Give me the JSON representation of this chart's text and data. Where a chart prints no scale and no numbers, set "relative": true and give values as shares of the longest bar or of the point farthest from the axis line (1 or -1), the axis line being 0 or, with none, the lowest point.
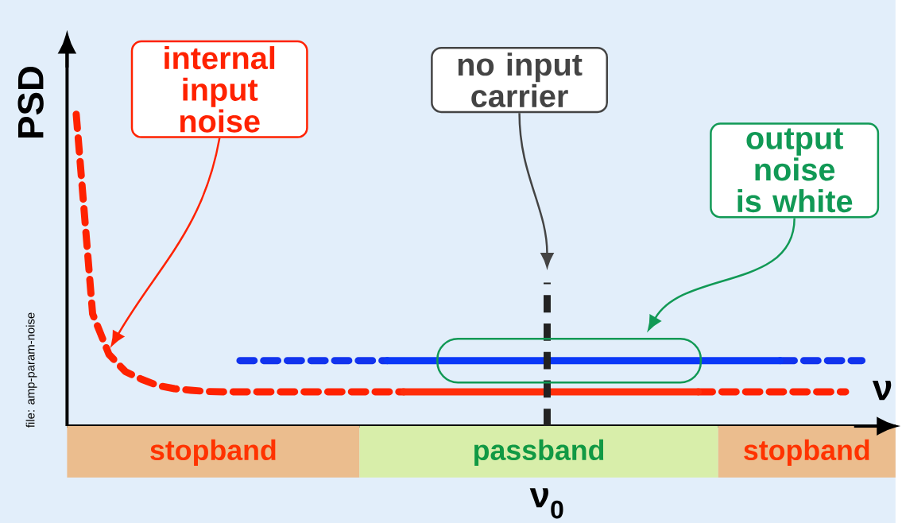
{
  "chart_data": {
    "type": "line",
    "relative": true,
    "xlabel": "ν",
    "ylabel": "PSD",
    "categories": [
      null,
      null,
      null,
      null,
      null,
      null,
      null,
      null,
      null,
      null,
      null,
      null,
      null,
      null,
      null,
      null,
      null,
      null,
      null,
      null,
      null,
      null,
      null,
      null,
      null,
      null,
      null,
      null,
      null,
      null,
      null,
      null,
      null,
      null,
      null,
      null,
      null,
      null,
      null,
      null,
      null,
      null,
      null,
      null,
      null,
      null,
      null,
      null,
      null,
      null
    ],
    "series": [
      {
        "color": "#ff2200",
        "line_style": "dashed",
        "values": [
          1.0,
          0.36,
          0.23,
          0.175,
          0.15,
          0.13,
          0.12,
          0.115,
          0.111,
          0.11,
          0.11,
          0.11,
          0.11,
          0.11,
          0.11,
          0.11,
          0.11,
          0.11,
          0.11,
          0.11,
          0.11,
          null,
          null,
          null,
          null,
          null,
          null,
          null,
          null,
          null,
          null,
          null,
          null,
          null,
          null,
          null,
          null,
          null,
          0.11,
          0.11,
          0.11,
          0.11,
          0.11,
          0.11,
          0.11,
          0.11,
          0.11,
          0.11,
          null,
          null
        ]
      },
      {
        "color": "#ff2e0a",
        "line_style": "solid",
        "values": [
          null,
          null,
          null,
          null,
          null,
          null,
          null,
          null,
          null,
          null,
          null,
          null,
          null,
          null,
          null,
          null,
          null,
          null,
          null,
          null,
          0.11,
          0.11,
          0.11,
          0.11,
          0.11,
          0.11,
          0.11,
          0.11,
          0.11,
          0.11,
          0.11,
          0.11,
          0.11,
          0.11,
          0.11,
          0.11,
          0.11,
          0.11,
          0.11,
          null,
          null,
          null,
          null,
          null,
          null,
          null,
          null,
          null,
          null,
          null
        ]
      },
      {
        "color": "#1133ee",
        "line_style": "dashed",
        "values": [
          null,
          null,
          null,
          null,
          null,
          null,
          null,
          null,
          null,
          null,
          0.21,
          0.21,
          0.21,
          0.21,
          0.21,
          0.21,
          0.21,
          0.21,
          0.21,
          0.21,
          null,
          null,
          null,
          null,
          null,
          null,
          null,
          null,
          null,
          null,
          null,
          null,
          null,
          null,
          null,
          null,
          null,
          null,
          null,
          null,
          null,
          null,
          null,
          0.21,
          0.21,
          0.21,
          0.21,
          0.21,
          0.21,
          null
        ]
      },
      {
        "color": "#0a38f8",
        "line_style": "solid",
        "values": [
          null,
          null,
          null,
          null,
          null,
          null,
          null,
          null,
          null,
          null,
          null,
          null,
          null,
          null,
          null,
          null,
          null,
          null,
          null,
          0.21,
          0.21,
          0.21,
          0.21,
          0.21,
          0.21,
          0.21,
          0.21,
          0.21,
          0.21,
          0.21,
          0.21,
          0.21,
          0.21,
          0.21,
          0.21,
          0.21,
          0.21,
          0.21,
          0.21,
          0.21,
          0.21,
          0.21,
          0.21,
          0.21,
          null,
          null,
          null,
          null,
          null,
          null
        ]
      }
    ],
    "annotations": [
      "internal input noise",
      "no input carrier",
      "output noise is white",
      "file: amp-param-noise",
      "stopband",
      "passband",
      "stopband",
      "ν$_{0}$"
    ]
  }
}
